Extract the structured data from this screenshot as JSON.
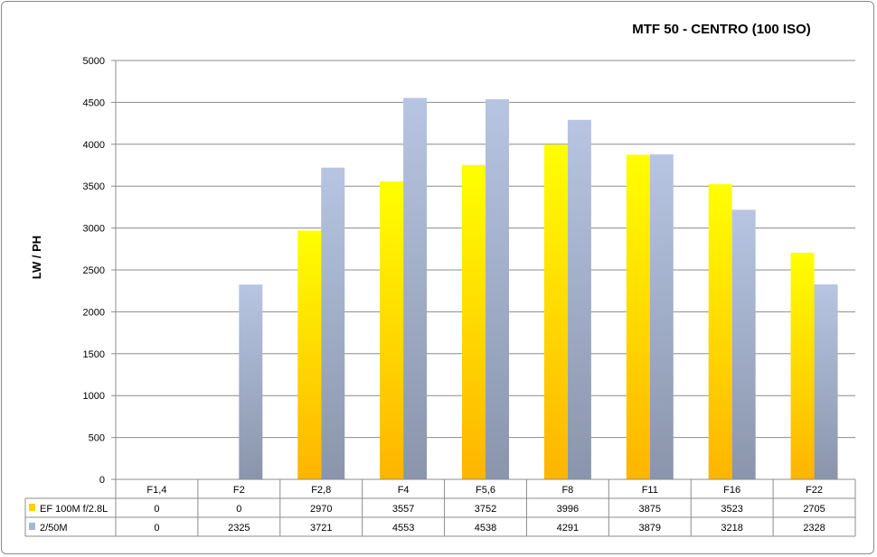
{
  "chart_data": {
    "type": "bar",
    "title": "MTF 50 - CENTRO (100 ISO)",
    "xlabel": "",
    "ylabel": "LW / PH",
    "ylim": [
      0,
      5000
    ],
    "yticks": [
      "0",
      "500",
      "1000",
      "1500",
      "2000",
      "2500",
      "3000",
      "3500",
      "4000",
      "4500",
      "5000"
    ],
    "grid": true,
    "legend_placement": "data-table",
    "categories": [
      "F1,4",
      "F2",
      "F2,8",
      "F4",
      "F5,6",
      "F8",
      "F11",
      "F16",
      "F22"
    ],
    "series": [
      {
        "name": "EF 100M f/2.8L",
        "color": "#ffd000",
        "values": [
          0,
          0,
          2970,
          3557,
          3752,
          3996,
          3875,
          3523,
          2705
        ]
      },
      {
        "name": "2/50M",
        "color": "#a9b6d2",
        "values": [
          0,
          2325,
          3721,
          4553,
          4538,
          4291,
          3879,
          3218,
          2328
        ]
      }
    ]
  }
}
